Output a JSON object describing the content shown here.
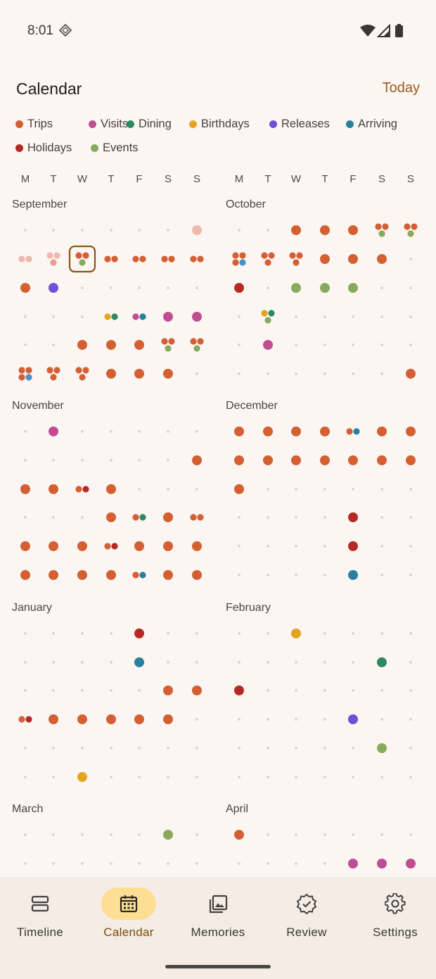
{
  "status": {
    "time": "8:01"
  },
  "header": {
    "title": "Calendar",
    "today_label": "Today"
  },
  "legend": [
    {
      "label": "Trips",
      "color": "#D45F33"
    },
    {
      "label": "Visits",
      "color": "#C04D92"
    },
    {
      "label": "Dining",
      "color": "#2E8A5E"
    },
    {
      "label": "Birthdays",
      "color": "#E5A41F"
    },
    {
      "label": "Releases",
      "color": "#7150D6"
    },
    {
      "label": "Arriving",
      "color": "#2A7FA0"
    },
    {
      "label": "Holidays",
      "color": "#B52A24"
    },
    {
      "label": "Events",
      "color": "#88AA5C"
    }
  ],
  "weekdays": [
    "M",
    "T",
    "W",
    "T",
    "F",
    "S",
    "S"
  ],
  "calendar": {
    "selected": "Sep 17",
    "months": [
      {
        "name": "September",
        "weeks": [
          [
            ".",
            ".",
            ".",
            ".",
            ".",
            ".",
            "p1"
          ],
          [
            "p2",
            "p3",
            "t2e",
            "t2",
            "t2",
            "t2",
            "t2"
          ],
          [
            "t",
            "r",
            ".",
            ".",
            ".",
            ".",
            "."
          ],
          [
            ".",
            ".",
            ".",
            "bd",
            "va",
            "v",
            "v"
          ],
          [
            ".",
            ".",
            "t",
            "t",
            "t",
            "tt_e",
            "tt_e"
          ],
          [
            "tt_ta",
            "tt_t",
            "tt_t",
            "t",
            "t",
            "t",
            "."
          ]
        ]
      },
      {
        "name": "October",
        "weeks": [
          [
            ".",
            ".",
            "t",
            "t",
            "t",
            "tt_e",
            "tt_e"
          ],
          [
            "tt_ta",
            "tt_t",
            "tt_t",
            "t",
            "t",
            "t",
            "."
          ],
          [
            "h",
            ".",
            "e",
            "e",
            "e",
            ".",
            "."
          ],
          [
            ".",
            "bd_e",
            ".",
            ".",
            ".",
            ".",
            "."
          ],
          [
            ".",
            "v",
            ".",
            ".",
            ".",
            ".",
            "."
          ],
          [
            ".",
            ".",
            ".",
            ".",
            ".",
            ".",
            "t"
          ]
        ]
      },
      {
        "name": "November",
        "weeks": [
          [
            ".",
            "v",
            ".",
            ".",
            ".",
            ".",
            "."
          ],
          [
            ".",
            ".",
            ".",
            ".",
            ".",
            ".",
            "t"
          ],
          [
            "t",
            "t",
            "th",
            "t",
            ".",
            ".",
            "."
          ],
          [
            ".",
            ".",
            ".",
            "t",
            "td",
            "t",
            "t2"
          ],
          [
            "t",
            "t",
            "t",
            "th",
            "t",
            "t",
            "t"
          ],
          [
            "t",
            "t",
            "t",
            "t",
            "ta",
            "t",
            "t"
          ]
        ]
      },
      {
        "name": "December",
        "weeks": [
          [
            "t",
            "t",
            "t",
            "t",
            "ta",
            "t",
            "t"
          ],
          [
            "t",
            "t",
            "t",
            "t",
            "t",
            "t",
            "t"
          ],
          [
            "t",
            ".",
            ".",
            ".",
            ".",
            ".",
            "."
          ],
          [
            ".",
            ".",
            ".",
            ".",
            "h",
            ".",
            "."
          ],
          [
            ".",
            ".",
            ".",
            ".",
            "h",
            ".",
            "."
          ],
          [
            ".",
            ".",
            ".",
            ".",
            "a",
            ".",
            "."
          ]
        ]
      },
      {
        "name": "January",
        "weeks": [
          [
            ".",
            ".",
            ".",
            ".",
            "h",
            ".",
            "."
          ],
          [
            ".",
            ".",
            ".",
            ".",
            "a",
            ".",
            "."
          ],
          [
            ".",
            ".",
            ".",
            ".",
            ".",
            "t",
            "t"
          ],
          [
            "th",
            "t",
            "t",
            "t",
            "t",
            "t",
            "."
          ],
          [
            ".",
            ".",
            ".",
            ".",
            ".",
            ".",
            "."
          ],
          [
            ".",
            ".",
            "b",
            ".",
            ".",
            ".",
            "."
          ]
        ]
      },
      {
        "name": "February",
        "weeks": [
          [
            ".",
            ".",
            "b",
            ".",
            ".",
            ".",
            "."
          ],
          [
            ".",
            ".",
            ".",
            ".",
            ".",
            "d",
            "."
          ],
          [
            "h",
            ".",
            ".",
            ".",
            ".",
            ".",
            "."
          ],
          [
            ".",
            ".",
            ".",
            ".",
            "r",
            ".",
            "."
          ],
          [
            ".",
            ".",
            ".",
            ".",
            ".",
            "e",
            "."
          ],
          [
            ".",
            ".",
            ".",
            ".",
            ".",
            ".",
            "."
          ]
        ]
      },
      {
        "name": "March",
        "weeks": [
          [
            ".",
            ".",
            ".",
            ".",
            ".",
            "e",
            "."
          ],
          [
            ".",
            ".",
            ".",
            ".",
            ".",
            ".",
            "."
          ]
        ]
      },
      {
        "name": "April",
        "weeks": [
          [
            "t",
            ".",
            ".",
            ".",
            ".",
            ".",
            "."
          ],
          [
            ".",
            ".",
            ".",
            ".",
            "v",
            "v",
            "v"
          ]
        ]
      }
    ]
  },
  "nav": [
    {
      "label": "Timeline",
      "icon": "timeline-icon",
      "active": false
    },
    {
      "label": "Calendar",
      "icon": "calendar-icon",
      "active": true
    },
    {
      "label": "Memories",
      "icon": "memories-icon",
      "active": false
    },
    {
      "label": "Review",
      "icon": "review-icon",
      "active": false
    },
    {
      "label": "Settings",
      "icon": "settings-icon",
      "active": false
    }
  ]
}
